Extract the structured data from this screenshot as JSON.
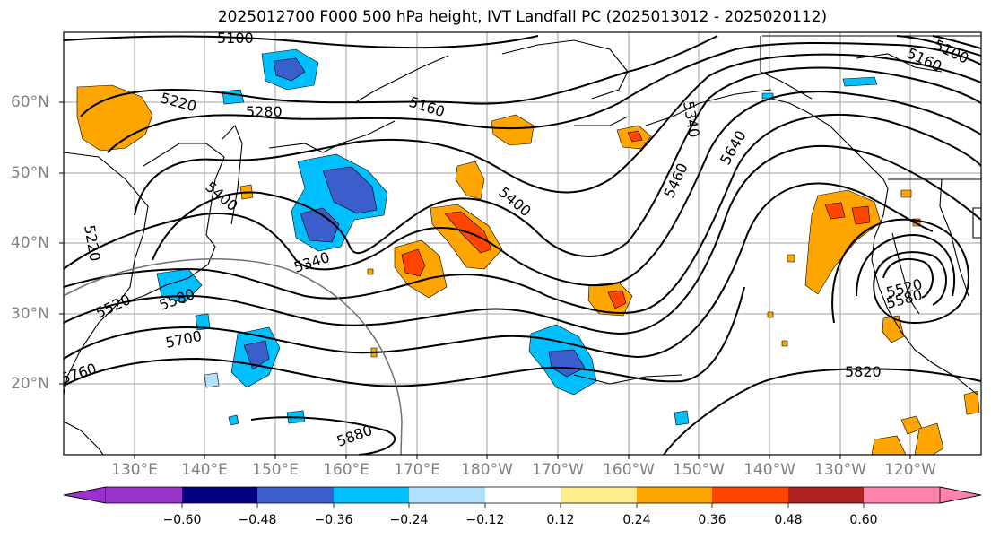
{
  "title": "2025012700 F000 500 hPa height, IVT Landfall PC (2025013012 - 2025020112)",
  "map": {
    "projection": "PlateCarree",
    "lon_range": [
      120,
      250
    ],
    "lat_range": [
      10,
      70
    ],
    "lat_labels": [
      "60°N",
      "50°N",
      "40°N",
      "30°N",
      "20°N"
    ],
    "lon_labels": [
      "130°E",
      "140°E",
      "150°E",
      "160°E",
      "170°E",
      "180°W",
      "170°W",
      "160°W",
      "150°W",
      "140°W",
      "130°W",
      "120°W"
    ],
    "contour_labels": [
      "5100",
      "5220",
      "5280",
      "5160",
      "5340",
      "5640",
      "5460",
      "5400",
      "5400",
      "5340",
      "5220",
      "5580",
      "5700",
      "5760",
      "5820",
      "5880",
      "5520",
      "5580",
      "5520",
      "5160",
      "5100"
    ],
    "contour_color": "#000000"
  },
  "colorbar": {
    "colors": [
      "#9933cc",
      "#000080",
      "#3a5fcd",
      "#00bfff",
      "#b0e2ff",
      "#ffffff",
      "#ffec8b",
      "#ffa500",
      "#ff4500",
      "#b22222",
      "#ff82ab"
    ],
    "ticks": [
      "−0.60",
      "−0.48",
      "−0.36",
      "−0.24",
      "−0.12",
      "0.12",
      "0.24",
      "0.36",
      "0.48",
      "0.60"
    ]
  }
}
